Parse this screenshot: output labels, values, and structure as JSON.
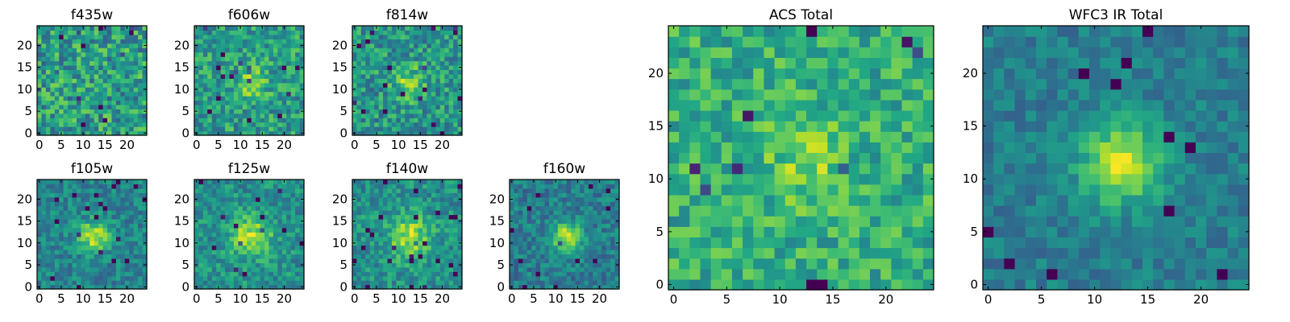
{
  "figure": {
    "background": "#ffffff",
    "colormap": "viridis"
  },
  "chart_data": [
    {
      "type": "heatmap",
      "title": "f435w",
      "grid": [
        25,
        25
      ],
      "xlim": [
        0,
        24
      ],
      "ylim": [
        0,
        24
      ],
      "xticks": [
        "0",
        "5",
        "10",
        "15",
        "20"
      ],
      "yticks": [
        "0",
        "5",
        "10",
        "15",
        "20"
      ],
      "noise": 0.5,
      "blob": 0.0,
      "sigma": 3.0,
      "base": 0.55,
      "seed": 11
    },
    {
      "type": "heatmap",
      "title": "f606w",
      "grid": [
        25,
        25
      ],
      "xlim": [
        0,
        24
      ],
      "ylim": [
        0,
        24
      ],
      "xticks": [
        "0",
        "5",
        "10",
        "15",
        "20"
      ],
      "yticks": [
        "0",
        "5",
        "10",
        "15",
        "20"
      ],
      "noise": 0.42,
      "blob": 0.22,
      "sigma": 2.8,
      "base": 0.55,
      "seed": 23
    },
    {
      "type": "heatmap",
      "title": "f814w",
      "grid": [
        25,
        25
      ],
      "xlim": [
        0,
        24
      ],
      "ylim": [
        0,
        24
      ],
      "xticks": [
        "0",
        "5",
        "10",
        "15",
        "20"
      ],
      "yticks": [
        "0",
        "5",
        "10",
        "15",
        "20"
      ],
      "noise": 0.42,
      "blob": 0.28,
      "sigma": 2.6,
      "base": 0.52,
      "seed": 37
    },
    {
      "type": "heatmap",
      "title": "f105w",
      "grid": [
        25,
        25
      ],
      "xlim": [
        0,
        24
      ],
      "ylim": [
        0,
        24
      ],
      "xticks": [
        "0",
        "5",
        "10",
        "15",
        "20"
      ],
      "yticks": [
        "0",
        "5",
        "10",
        "15",
        "20"
      ],
      "noise": 0.3,
      "blob": 0.45,
      "sigma": 2.5,
      "base": 0.45,
      "seed": 41
    },
    {
      "type": "heatmap",
      "title": "f125w",
      "grid": [
        25,
        25
      ],
      "xlim": [
        0,
        24
      ],
      "ylim": [
        0,
        24
      ],
      "xticks": [
        "0",
        "5",
        "10",
        "15",
        "20"
      ],
      "yticks": [
        "0",
        "5",
        "10",
        "15",
        "20"
      ],
      "noise": 0.32,
      "blob": 0.4,
      "sigma": 3.2,
      "base": 0.5,
      "seed": 53
    },
    {
      "type": "heatmap",
      "title": "f140w",
      "grid": [
        25,
        25
      ],
      "xlim": [
        0,
        24
      ],
      "ylim": [
        0,
        24
      ],
      "xticks": [
        "0",
        "5",
        "10",
        "15",
        "20"
      ],
      "yticks": [
        "0",
        "5",
        "10",
        "15",
        "20"
      ],
      "noise": 0.32,
      "blob": 0.38,
      "sigma": 3.3,
      "base": 0.5,
      "seed": 67
    },
    {
      "type": "heatmap",
      "title": "f160w",
      "grid": [
        25,
        25
      ],
      "xlim": [
        0,
        24
      ],
      "ylim": [
        0,
        24
      ],
      "xticks": [
        "0",
        "5",
        "10",
        "15",
        "20"
      ],
      "yticks": [
        "0",
        "5",
        "10",
        "15",
        "20"
      ],
      "noise": 0.3,
      "blob": 0.5,
      "sigma": 2.4,
      "base": 0.42,
      "seed": 79
    },
    {
      "type": "heatmap",
      "title": "ACS Total",
      "grid": [
        25,
        25
      ],
      "xlim": [
        0,
        24
      ],
      "ylim": [
        0,
        24
      ],
      "xticks": [
        "0",
        "5",
        "10",
        "15",
        "20"
      ],
      "yticks": [
        "0",
        "5",
        "10",
        "15",
        "20"
      ],
      "noise": 0.36,
      "blob": 0.2,
      "sigma": 2.6,
      "base": 0.62,
      "seed": 97
    },
    {
      "type": "heatmap",
      "title": "WFC3 IR Total",
      "grid": [
        25,
        25
      ],
      "xlim": [
        0,
        24
      ],
      "ylim": [
        0,
        24
      ],
      "xticks": [
        "0",
        "5",
        "10",
        "15",
        "20"
      ],
      "yticks": [
        "0",
        "5",
        "10",
        "15",
        "20"
      ],
      "noise": 0.22,
      "blob": 0.55,
      "sigma": 2.6,
      "base": 0.42,
      "seed": 113
    }
  ]
}
